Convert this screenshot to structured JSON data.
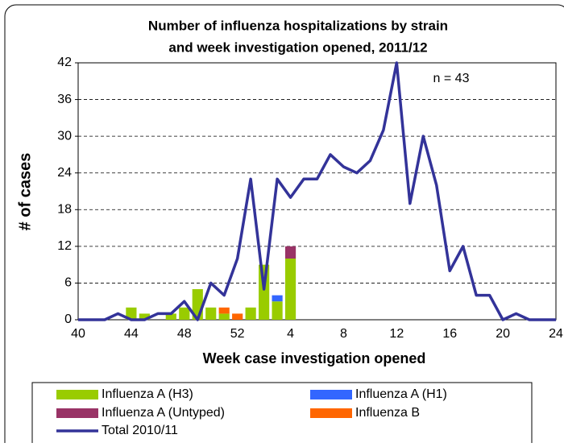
{
  "chart_data": {
    "type": "bar",
    "title": [
      "Number of influenza hospitalizations by  strain",
      "and week investigation opened, 2011/12"
    ],
    "annotation": "n = 43",
    "xlabel": "Week case investigation opened",
    "ylabel": "# of cases",
    "categories": [
      "40",
      null,
      null,
      null,
      "44",
      null,
      null,
      null,
      "48",
      null,
      null,
      null,
      "52",
      null,
      null,
      null,
      "4",
      null,
      null,
      null,
      "8",
      null,
      null,
      null,
      "12",
      null,
      null,
      null,
      "16",
      null,
      null,
      null,
      "20",
      null,
      null,
      null,
      "24"
    ],
    "ylim": [
      0,
      42
    ],
    "yticks": [
      0,
      6,
      12,
      18,
      24,
      30,
      36,
      42
    ],
    "grid": true,
    "series": [
      {
        "name": "Influenza A (H3)",
        "type": "bar",
        "color": "#99cc00",
        "values": [
          0,
          0,
          0,
          0,
          2,
          1,
          0,
          1,
          2,
          5,
          2,
          1,
          0,
          2,
          9,
          3,
          10,
          0,
          0,
          0,
          0,
          0,
          0,
          0,
          0,
          0,
          0,
          0,
          0,
          0,
          0,
          0,
          0,
          0,
          0,
          0,
          0
        ]
      },
      {
        "name": "Influenza A (H1)",
        "type": "bar",
        "color": "#3366ff",
        "values": [
          0,
          0,
          0,
          0,
          0,
          0,
          0,
          0,
          0,
          0,
          0,
          0,
          0,
          0,
          0,
          1,
          0,
          0,
          0,
          0,
          0,
          0,
          0,
          0,
          0,
          0,
          0,
          0,
          0,
          0,
          0,
          0,
          0,
          0,
          0,
          0,
          0
        ]
      },
      {
        "name": "Influenza A (Untyped)",
        "type": "bar",
        "color": "#993366",
        "values": [
          0,
          0,
          0,
          0,
          0,
          0,
          0,
          0,
          0,
          0,
          0,
          0,
          0,
          0,
          0,
          0,
          2,
          0,
          0,
          0,
          0,
          0,
          0,
          0,
          0,
          0,
          0,
          0,
          0,
          0,
          0,
          0,
          0,
          0,
          0,
          0,
          0
        ]
      },
      {
        "name": "Influenza B",
        "type": "bar",
        "color": "#ff6600",
        "values": [
          0,
          0,
          0,
          0,
          0,
          0,
          0,
          0,
          0,
          0,
          0,
          1,
          1,
          0,
          0,
          0,
          0,
          0,
          0,
          0,
          0,
          0,
          0,
          0,
          0,
          0,
          0,
          0,
          0,
          0,
          0,
          0,
          0,
          0,
          0,
          0,
          0
        ]
      },
      {
        "name": "Total 2010/11",
        "type": "line",
        "color": "#333399",
        "values": [
          0,
          0,
          0,
          1,
          0,
          0,
          1,
          1,
          3,
          0,
          6,
          4,
          10,
          23,
          5,
          23,
          20,
          23,
          23,
          27,
          25,
          24,
          26,
          31,
          42,
          19,
          30,
          22,
          8,
          12,
          4,
          4,
          0,
          1,
          0,
          0,
          0
        ]
      }
    ]
  }
}
